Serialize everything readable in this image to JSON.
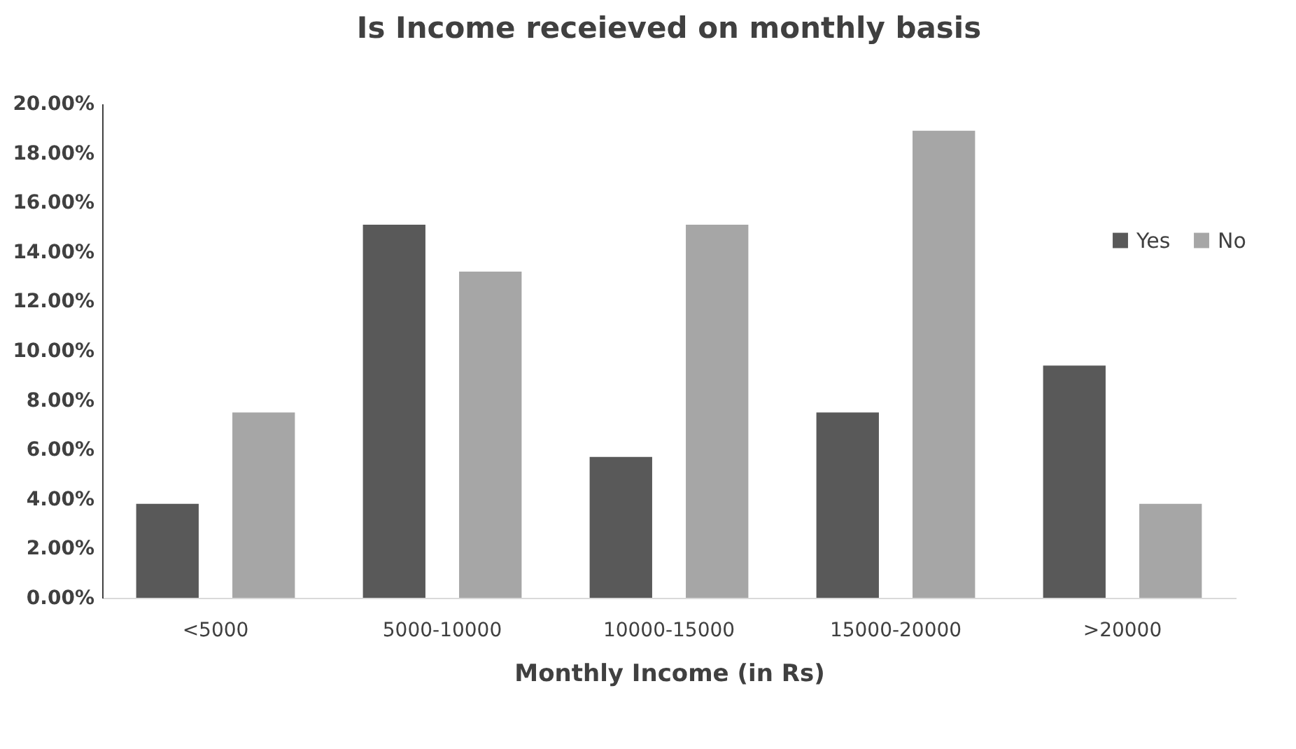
{
  "chart_data": {
    "type": "bar",
    "title": "Is Income receieved on monthly basis",
    "xlabel": "Monthly Income (in Rs)",
    "categories": [
      "<5000",
      "5000-10000",
      "10000-15000",
      "15000-20000",
      ">20000"
    ],
    "series": [
      {
        "name": "Yes",
        "color": "#595959",
        "values": [
          3.8,
          15.1,
          5.7,
          7.5,
          9.4
        ]
      },
      {
        "name": "No",
        "color": "#a6a6a6",
        "values": [
          7.5,
          13.2,
          15.1,
          18.9,
          3.8
        ]
      }
    ],
    "ylim": [
      0,
      20
    ],
    "yticks": [
      {
        "value": 0,
        "label": "0.00%"
      },
      {
        "value": 2,
        "label": "2.00%"
      },
      {
        "value": 4,
        "label": "4.00%"
      },
      {
        "value": 6,
        "label": "6.00%"
      },
      {
        "value": 8,
        "label": "8.00%"
      },
      {
        "value": 10,
        "label": "10.00%"
      },
      {
        "value": 12,
        "label": "12.00%"
      },
      {
        "value": 14,
        "label": "14.00%"
      },
      {
        "value": 16,
        "label": "16.00%"
      },
      {
        "value": 18,
        "label": "18.00%"
      },
      {
        "value": 20,
        "label": "20.00%"
      }
    ],
    "grid": false,
    "legend": "right"
  }
}
